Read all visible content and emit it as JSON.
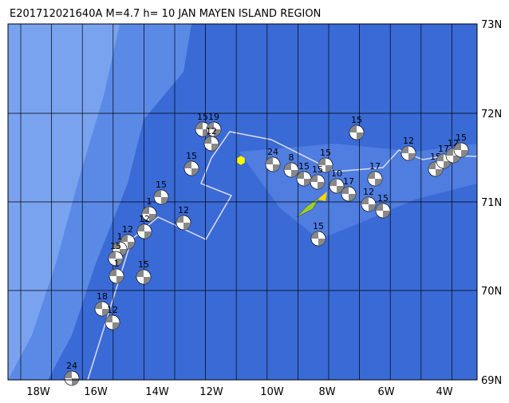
{
  "title": "E201712021640A M=4.7 h= 10 JAN MAYEN ISLAND REGION",
  "lat_labels": [
    "73N",
    "72N",
    "71N",
    "70N",
    "69N"
  ],
  "lon_labels": [
    "18W",
    "16W",
    "14W",
    "12W",
    "10W",
    "8W",
    "6W",
    "4W"
  ],
  "events": [
    {
      "label": "15"
    },
    {
      "label": "19"
    },
    {
      "label": "12"
    },
    {
      "label": "15"
    },
    {
      "label": "15"
    },
    {
      "label": "12"
    },
    {
      "label": "1"
    },
    {
      "label": "12"
    },
    {
      "label": "12"
    },
    {
      "label": "1"
    },
    {
      "label": "15"
    },
    {
      "label": "15"
    },
    {
      "label": "1"
    },
    {
      "label": "18"
    },
    {
      "label": "12"
    },
    {
      "label": "24"
    },
    {
      "label": "24"
    },
    {
      "label": "8"
    },
    {
      "label": "15"
    },
    {
      "label": "15"
    },
    {
      "label": "15"
    },
    {
      "label": "10"
    },
    {
      "label": "17"
    },
    {
      "label": "15"
    },
    {
      "label": "17"
    },
    {
      "label": "12"
    },
    {
      "label": "15"
    },
    {
      "label": "15"
    },
    {
      "label": "12"
    },
    {
      "label": "15"
    },
    {
      "label": "17"
    },
    {
      "label": "12"
    },
    {
      "label": "15"
    }
  ]
}
